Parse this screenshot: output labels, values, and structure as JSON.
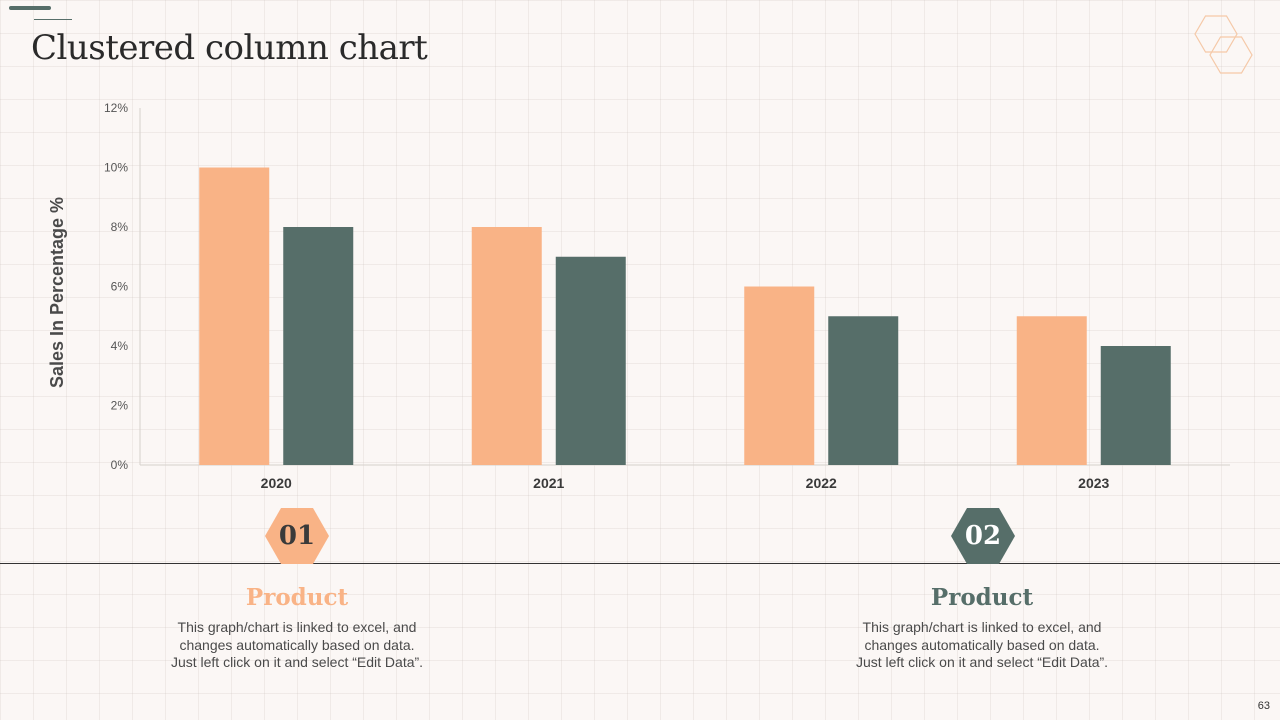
{
  "page": {
    "title": "Clustered column chart",
    "page_number": "63"
  },
  "colors": {
    "series1": "#f9b386",
    "series2": "#566e69",
    "text": "#2a2a2a"
  },
  "chart_data": {
    "type": "bar",
    "title": "",
    "xlabel": "",
    "ylabel": "Sales In Percentage %",
    "categories": [
      "2020",
      "2021",
      "2022",
      "2023"
    ],
    "series": [
      {
        "name": "Product 01",
        "values": [
          10,
          8,
          6,
          5
        ]
      },
      {
        "name": "Product 02",
        "values": [
          8,
          7,
          5,
          4
        ]
      }
    ],
    "ylim": [
      0,
      12
    ],
    "yticks": [
      0,
      2,
      4,
      6,
      8,
      10,
      12
    ],
    "ytick_suffix": "%",
    "grid": false,
    "legend": "none"
  },
  "products": [
    {
      "number": "01",
      "title": "Product",
      "description_lines": [
        "This graph/chart is linked to excel, and",
        "changes automatically based on data.",
        "Just left click on it and select “Edit Data”."
      ]
    },
    {
      "number": "02",
      "title": "Product",
      "description_lines": [
        "This graph/chart is linked to excel, and",
        "changes automatically based on data.",
        "Just left click on it and select “Edit Data”."
      ]
    }
  ]
}
